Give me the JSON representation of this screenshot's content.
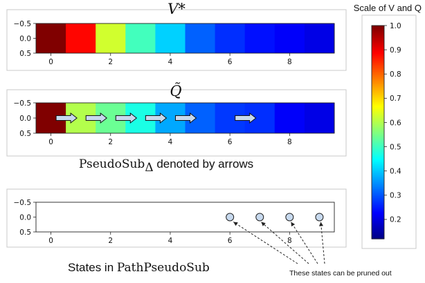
{
  "chart_data": [
    {
      "type": "heatmap",
      "title": "V*",
      "x": [
        0,
        1,
        2,
        3,
        4,
        5,
        6,
        7,
        8,
        9
      ],
      "values": [
        1.0,
        0.87,
        0.58,
        0.44,
        0.33,
        0.22,
        0.17,
        0.14,
        0.12,
        0.1
      ],
      "xticks": [
        "0",
        "2",
        "4",
        "6",
        "8"
      ],
      "yticks": [
        "−0.5",
        "0.0",
        "0.5"
      ],
      "colormap": "jet"
    },
    {
      "type": "heatmap",
      "title": "Q̃",
      "x": [
        0,
        1,
        2,
        3,
        4,
        5,
        6,
        7,
        8,
        9
      ],
      "values": [
        1.0,
        0.55,
        0.48,
        0.4,
        0.29,
        0.22,
        0.18,
        0.17,
        0.12,
        0.1
      ],
      "xticks": [
        "0",
        "2",
        "4",
        "6",
        "8"
      ],
      "yticks": [
        "−0.5",
        "0.0",
        "0.5"
      ],
      "colormap": "jet",
      "arrows_at": [
        0.5,
        1.5,
        2.5,
        3.5,
        4.5,
        6.5
      ],
      "caption_math": "PseudoSub",
      "caption_subscript": "Δ",
      "caption_text": " denoted by arrows"
    },
    {
      "type": "scatter",
      "x": [
        6,
        7,
        8,
        9
      ],
      "y": [
        0,
        0,
        0,
        0
      ],
      "xticks": [
        "0",
        "2",
        "4",
        "6",
        "8"
      ],
      "yticks": [
        "−0.5",
        "0.0",
        "0.5"
      ],
      "caption_text": "States in ",
      "caption_math": "PathPseudoSub",
      "annotation": "These states can be pruned out"
    }
  ],
  "colorbar": {
    "title": "Scale of V and Q",
    "ticks": [
      "1.0",
      "0.9",
      "0.8",
      "0.7",
      "0.6",
      "0.5",
      "0.4",
      "0.3",
      "0.2"
    ],
    "range": [
      0.12,
      1.0
    ],
    "colormap": "jet"
  },
  "colors": {
    "marker_fill": "#c7d9ee",
    "arrow_fill": "#c7d9ee",
    "frame": "#c8c8c8"
  }
}
